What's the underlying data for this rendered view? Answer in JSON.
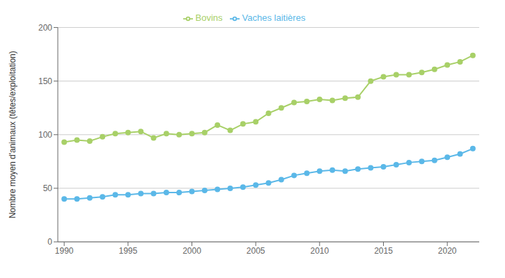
{
  "chart_data": {
    "type": "line",
    "ylabel": "Nombre moyen d'animaux (têtes/exploitation)",
    "x": [
      1990,
      1991,
      1992,
      1993,
      1994,
      1995,
      1996,
      1997,
      1998,
      1999,
      2000,
      2001,
      2002,
      2003,
      2004,
      2005,
      2006,
      2007,
      2008,
      2009,
      2010,
      2011,
      2012,
      2013,
      2014,
      2015,
      2016,
      2017,
      2018,
      2019,
      2020,
      2021,
      2022
    ],
    "series": [
      {
        "name": "Bovins",
        "color": "#a8d068",
        "marker": "circle",
        "values": [
          93,
          95,
          94,
          98,
          101,
          102,
          103,
          97,
          101,
          100,
          101,
          102,
          109,
          104,
          110,
          112,
          120,
          125,
          130,
          131,
          133,
          132,
          134,
          135,
          150,
          154,
          156,
          156,
          158,
          161,
          165,
          168,
          174
        ]
      },
      {
        "name": "Vaches laitières",
        "color": "#5bb8e8",
        "marker": "circle",
        "values": [
          40,
          40,
          41,
          42,
          44,
          44,
          45,
          45,
          46,
          46,
          47,
          48,
          49,
          50,
          51,
          53,
          55,
          58,
          62,
          64,
          66,
          67,
          66,
          68,
          69,
          70,
          72,
          74,
          75,
          76,
          79,
          82,
          87
        ]
      }
    ],
    "xlim": [
      1989.5,
      2022.5
    ],
    "xticks": [
      1990,
      1995,
      2000,
      2005,
      2010,
      2015,
      2020
    ],
    "ylim": [
      0,
      200
    ],
    "yticks": [
      0,
      50,
      100,
      150,
      200
    ],
    "grid": true,
    "legend": "top"
  }
}
